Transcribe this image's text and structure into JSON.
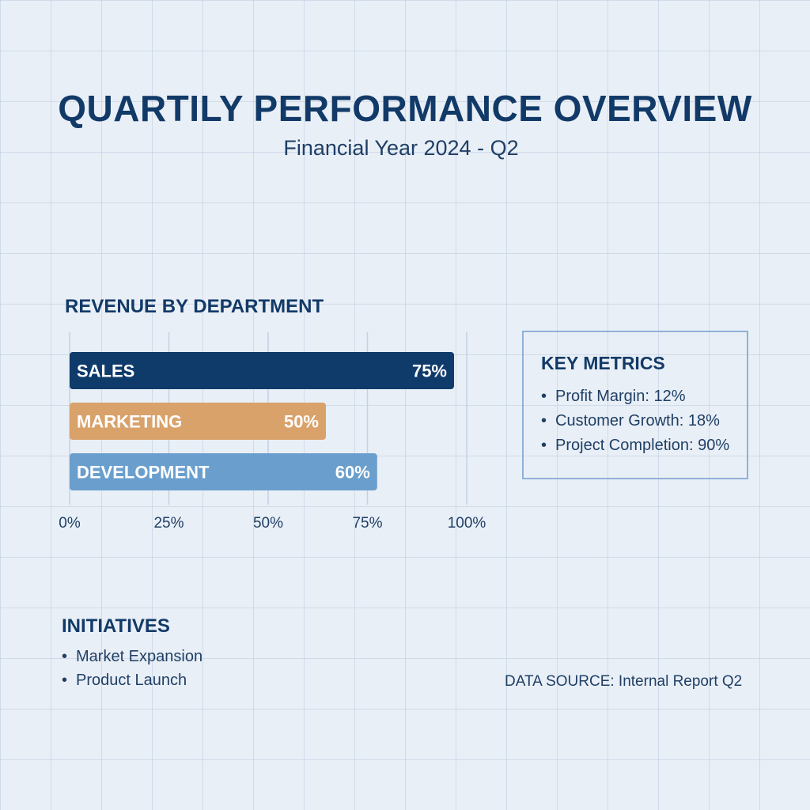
{
  "header": {
    "title": "QUARTILY PERFORMANCE OVERVIEW",
    "subtitle": "Financial Year 2024 - Q2"
  },
  "chart_data": {
    "type": "bar",
    "orientation": "horizontal",
    "title": "REVENUE BY DEPARTMENT",
    "categories": [
      "SALES",
      "MARKETING",
      "DEVELOPMENT"
    ],
    "values": [
      75,
      50,
      60
    ],
    "value_labels": [
      "75%",
      "50%",
      "60%"
    ],
    "colors": [
      "#0f3b6b",
      "#d9a26a",
      "#6a9fcd"
    ],
    "xlim": [
      0,
      100
    ],
    "xticks": [
      0,
      25,
      50,
      75,
      100
    ],
    "xtick_labels": [
      "0%",
      "25%",
      "50%",
      "75%",
      "100%"
    ],
    "grid": true
  },
  "metrics": {
    "title": "KEY METRICS",
    "items": [
      "Profit Margin: 12%",
      "Customer Growth: 18%",
      "Project Completion: 90%"
    ]
  },
  "initiatives": {
    "title": "INITIATIVES",
    "items": [
      "Market Expansion",
      "Product Launch"
    ]
  },
  "footer": {
    "source": "DATA SOURCE: Internal Report Q2"
  }
}
